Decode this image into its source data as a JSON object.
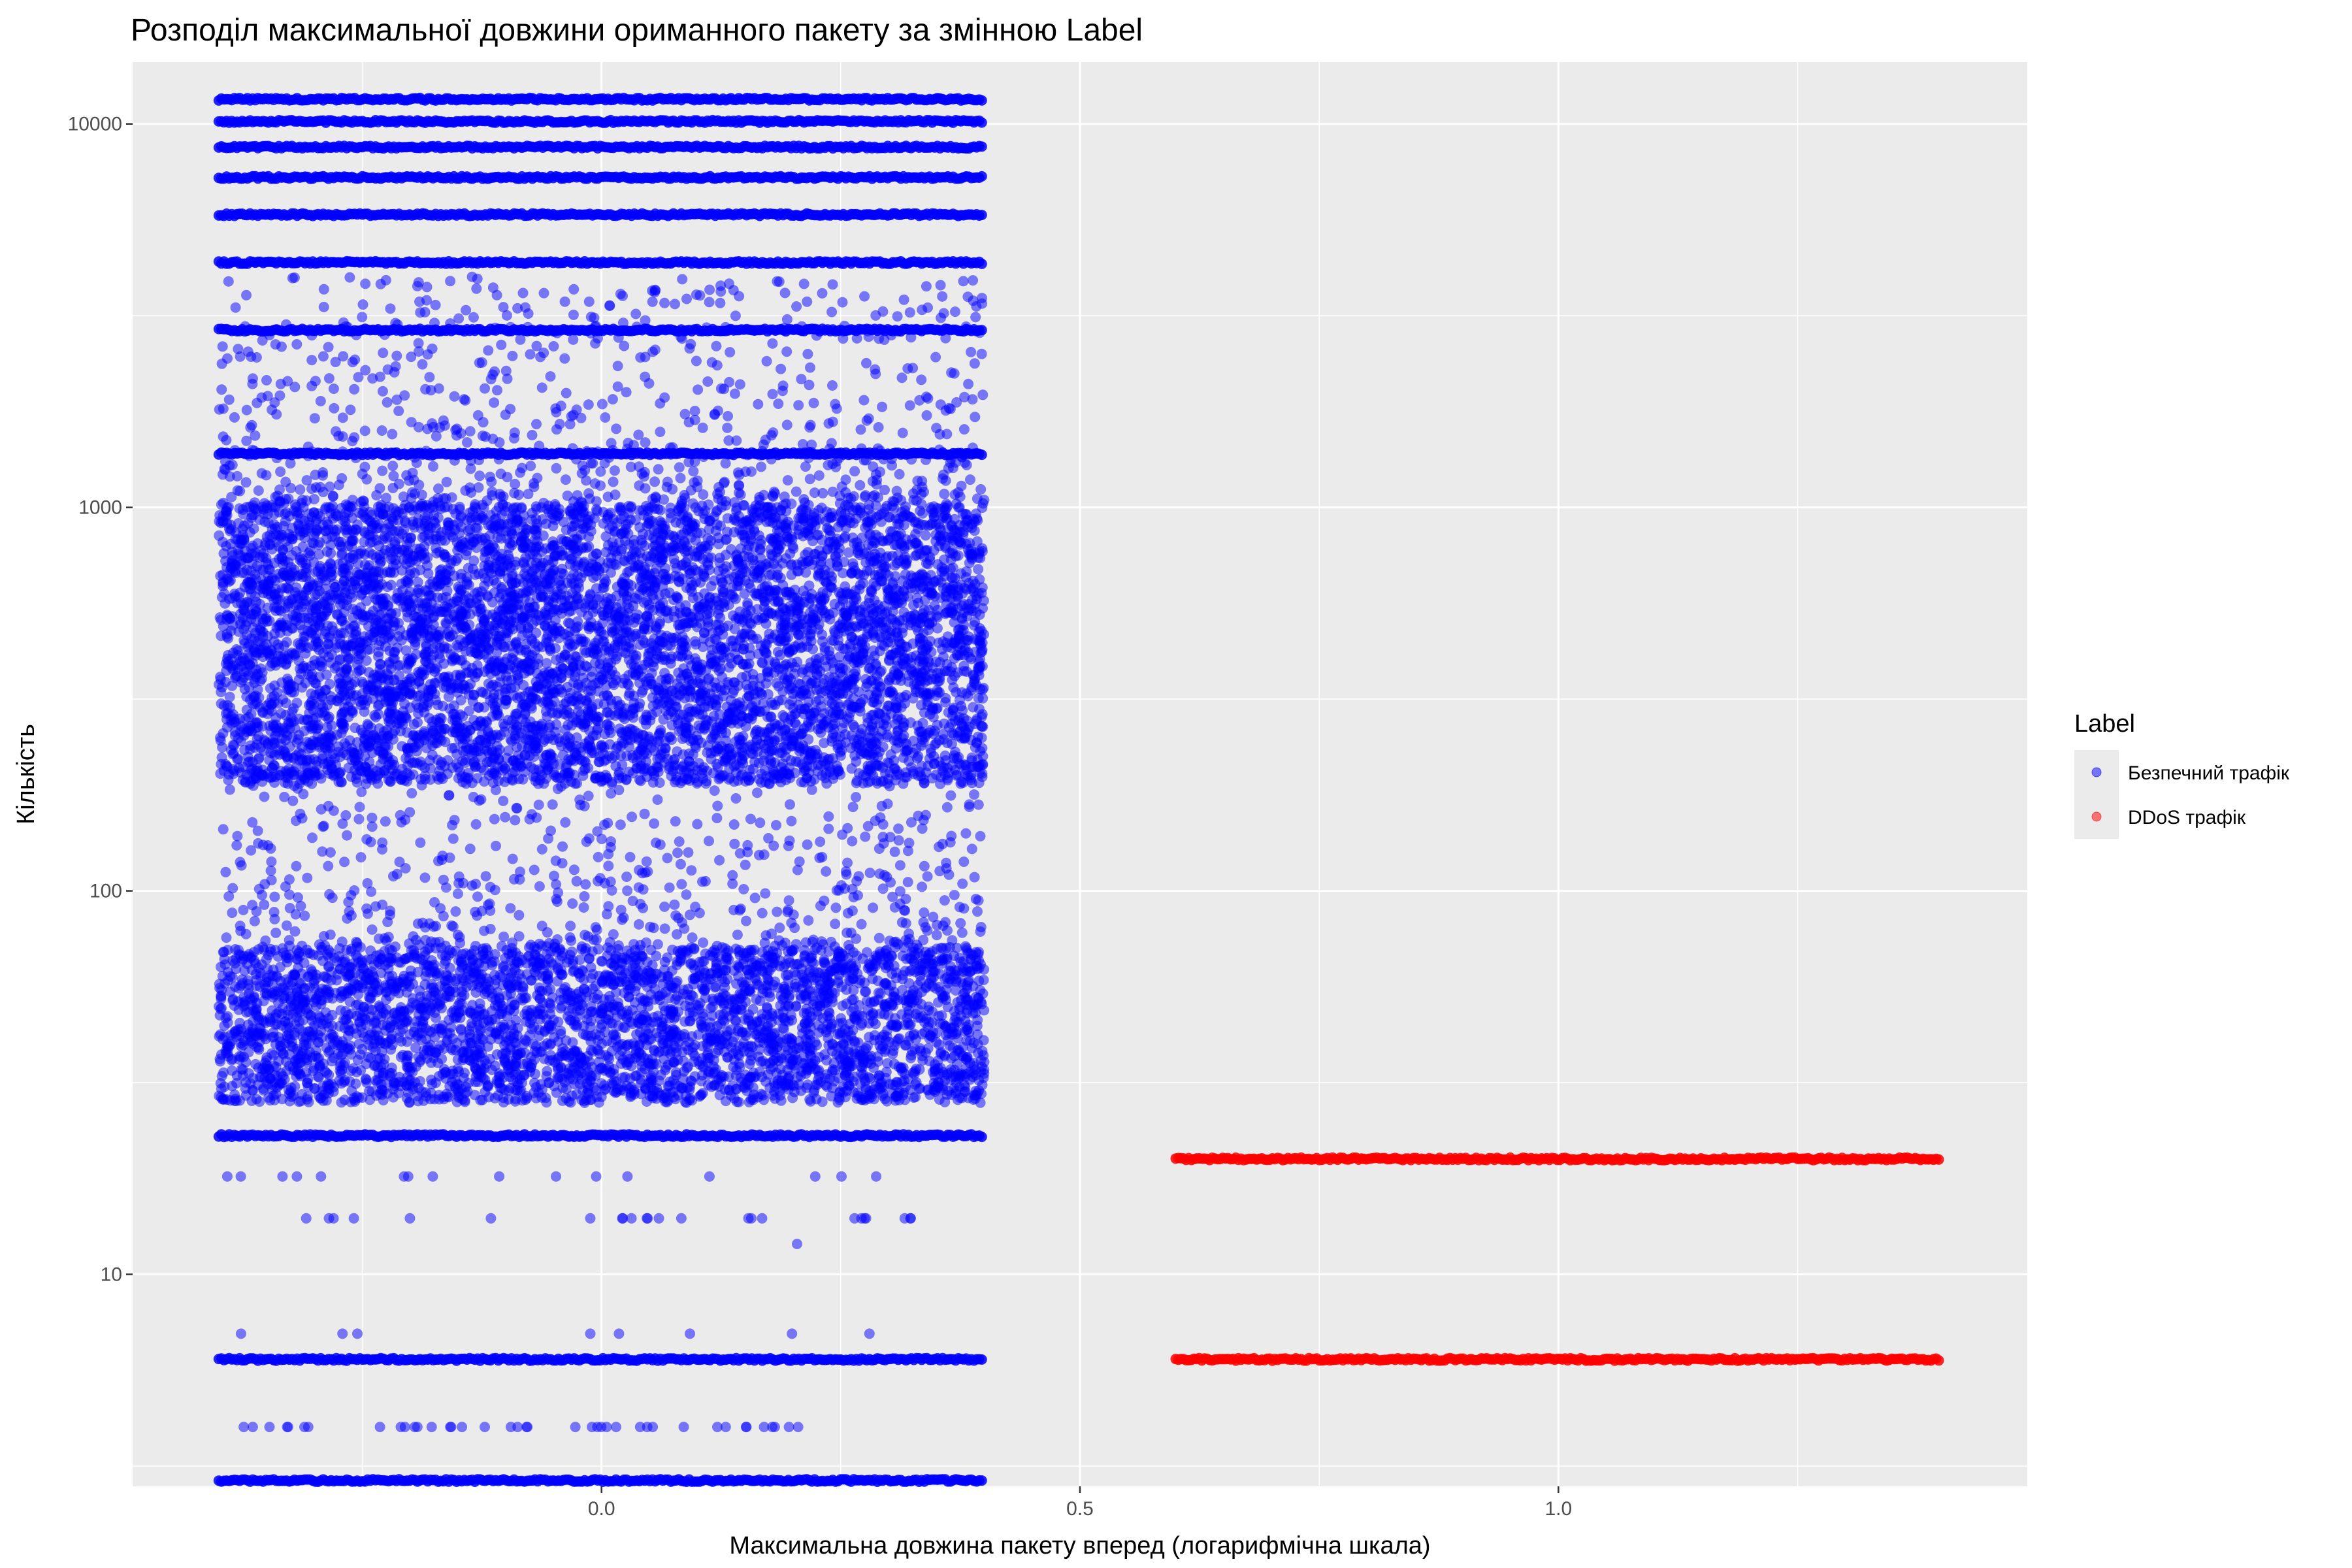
{
  "chart_data": {
    "type": "scatter",
    "title": "Розподіл максимальної довжини ориманного пакету за змінною Label",
    "xlabel": "Максимальна довжина пакету вперед (логарифмічна шкала)",
    "ylabel": "Кількість",
    "x_scale": "linear",
    "y_scale": "log10",
    "xlim": [
      -0.49,
      1.49
    ],
    "ylim": [
      2.8,
      14500
    ],
    "x_ticks": [
      {
        "value": 0.0,
        "label": "0.0"
      },
      {
        "value": 0.5,
        "label": "0.5"
      },
      {
        "value": 1.0,
        "label": "1.0"
      }
    ],
    "y_ticks": [
      {
        "value": 10,
        "label": "10"
      },
      {
        "value": 100,
        "label": "100"
      },
      {
        "value": 1000,
        "label": "1000"
      },
      {
        "value": 10000,
        "label": "10000"
      }
    ],
    "grid": true,
    "background": "#ebebeb",
    "legend": {
      "title": "Label",
      "position": "right",
      "entries": [
        {
          "label": "Безпечний трафік",
          "color": "#0000ff"
        },
        {
          "label": "DDoS трафік",
          "color": "#ff0000"
        }
      ]
    },
    "series": [
      {
        "name": "Безпечний трафік",
        "color": "#0000ff",
        "opacity": 0.5,
        "x_jitter_range": [
          -0.4,
          0.4
        ],
        "dense_bands_y": [
          2.9,
          6,
          23,
          1380,
          2900,
          4350,
          5800,
          7250,
          8700,
          10150,
          11600
        ],
        "dense_regions_y": [
          [
            28,
            70
          ],
          [
            190,
            1000
          ]
        ],
        "sparse_regions_y": [
          [
            70,
            190
          ],
          [
            1000,
            4000
          ]
        ],
        "isolated_points_y": [
          4,
          7,
          12,
          14,
          18
        ]
      },
      {
        "name": "DDoS трафік",
        "color": "#ff0000",
        "opacity": 0.5,
        "x_jitter_range": [
          0.6,
          1.4
        ],
        "dense_bands_y": [
          6,
          20
        ]
      }
    ]
  }
}
